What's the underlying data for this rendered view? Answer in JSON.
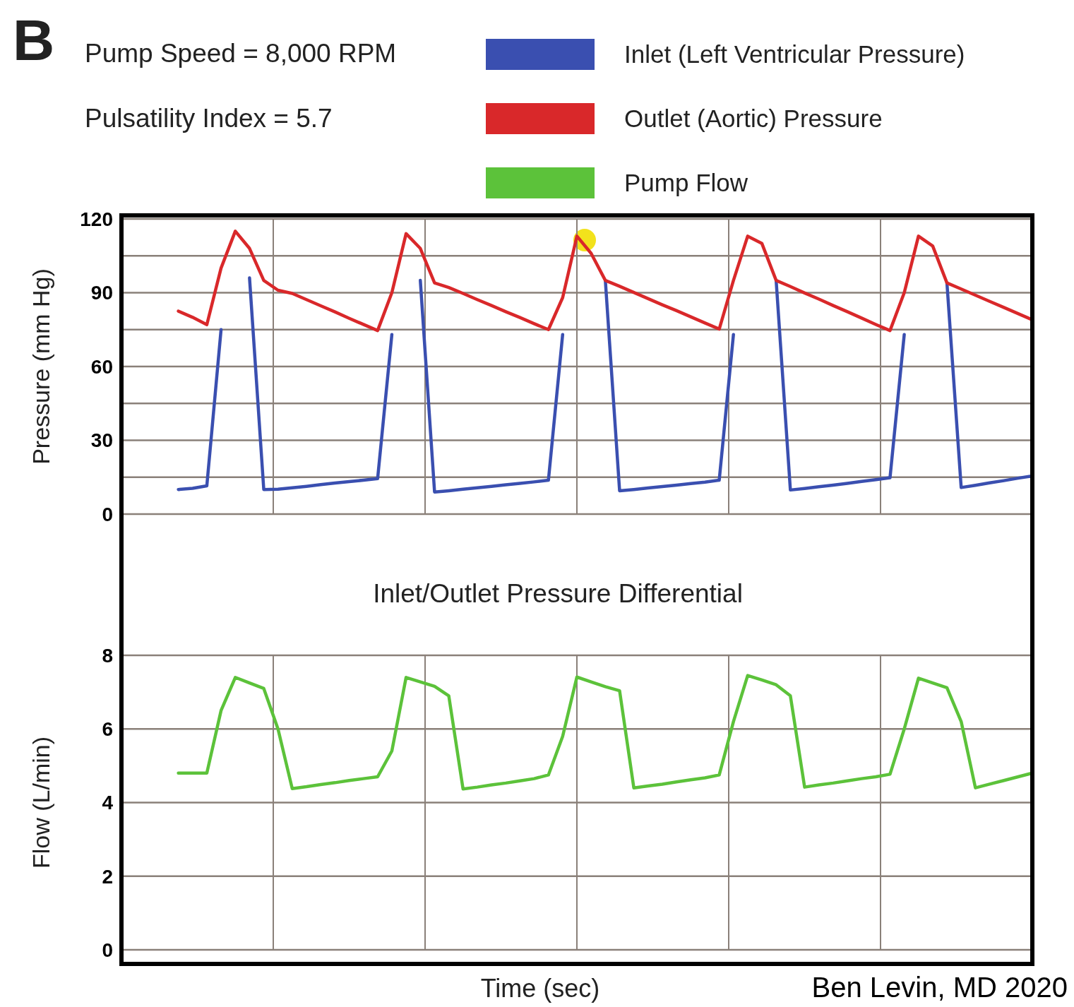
{
  "chart_data": [
    {
      "type": "line",
      "ylabel": "Pressure (mm Hg)",
      "legend": "top",
      "grid": true,
      "tick_labels": "y",
      "annotations": [
        "B",
        "Pump Speed = 8,000 RPM",
        "Pulsatility Index = 5.7"
      ],
      "categories": [
        null,
        null,
        null,
        null,
        null,
        null,
        null,
        null,
        null,
        null,
        null,
        null,
        null,
        null,
        null,
        null,
        null,
        null,
        null,
        null,
        null,
        null,
        null,
        null,
        null,
        null,
        null,
        null,
        null,
        null,
        null,
        null,
        null,
        null,
        null,
        null,
        null,
        null,
        null,
        null,
        null,
        null,
        null,
        null,
        null,
        null,
        null,
        null,
        null,
        null,
        null,
        null,
        null,
        null,
        null,
        null,
        null,
        null,
        null,
        null,
        null
      ],
      "ylim": [
        0,
        120
      ],
      "yticks": [
        0,
        {
          "value": 15,
          "label": null
        },
        30,
        {
          "value": 45,
          "label": null
        },
        60,
        {
          "value": 75,
          "label": null
        },
        90,
        {
          "value": 105,
          "label": null
        },
        120
      ],
      "series": [
        {
          "name": "Inlet (Left Ventricular Pressure)",
          "color": "#3a4fb0",
          "values": [
            10,
            10.5,
            11.5,
            75,
            null,
            96,
            10,
            10.1,
            10.7,
            11.3,
            12,
            12.6,
            13.2,
            13.8,
            14.4,
            73,
            null,
            95,
            9,
            9.5,
            10.1,
            10.7,
            11.3,
            11.9,
            12.5,
            13.1,
            13.8,
            73,
            null,
            null,
            95,
            9.5,
            10,
            10.6,
            11.2,
            11.8,
            12.4,
            13,
            13.8,
            73,
            null,
            null,
            95,
            9.8,
            10.4,
            11.1,
            11.8,
            12.5,
            13.3,
            14,
            14.8,
            73,
            null,
            null,
            94,
            10.8,
            11.7,
            12.7,
            13.6,
            14.6,
            15.5
          ]
        },
        {
          "name": "Outlet (Aortic) Pressure",
          "color": "#d9282a",
          "values": [
            82.5,
            80,
            77,
            100,
            115,
            108,
            95,
            91,
            89.7,
            87.2,
            84.7,
            82.2,
            79.6,
            77.1,
            74.6,
            90,
            114,
            108,
            94,
            92.1,
            89.7,
            87.2,
            84.8,
            82.3,
            79.9,
            77.4,
            75,
            88,
            113,
            106,
            95,
            92.6,
            90.1,
            87.6,
            85.1,
            82.7,
            80.2,
            77.7,
            75.2,
            95,
            113,
            110,
            95,
            92.5,
            89.9,
            87.4,
            84.8,
            82.3,
            79.7,
            77.1,
            74.6,
            90,
            113,
            109,
            94,
            91.5,
            89,
            86.5,
            84,
            81.5,
            79
          ]
        }
      ]
    },
    {
      "type": "line",
      "title": "Inlet/Outlet Pressure Differential",
      "xlabel": "Time (sec)",
      "ylabel": "Flow (L/min)",
      "legend": "top",
      "grid": true,
      "tick_labels": "y",
      "annotations": [
        "Ben Levin, MD 2020"
      ],
      "categories": [
        null,
        null,
        null,
        null,
        null,
        null,
        null,
        null,
        null,
        null,
        null,
        null,
        null,
        null,
        null,
        null,
        null,
        null,
        null,
        null,
        null,
        null,
        null,
        null,
        null,
        null,
        null,
        null,
        null,
        null,
        null,
        null,
        null,
        null,
        null,
        null,
        null,
        null,
        null,
        null,
        null,
        null,
        null,
        null,
        null,
        null,
        null,
        null,
        null,
        null,
        null,
        null,
        null,
        null,
        null,
        null,
        null,
        null,
        null,
        null,
        null
      ],
      "ylim": [
        0,
        8
      ],
      "yticks": [
        0,
        2,
        4,
        6,
        8
      ],
      "series": [
        {
          "name": "Pump Flow",
          "color": "#5cc23a",
          "values": [
            4.8,
            4.8,
            4.8,
            6.5,
            7.4,
            7.25,
            7.1,
            6,
            4.38,
            4.43,
            4.49,
            4.54,
            4.6,
            4.65,
            4.7,
            5.4,
            7.4,
            7.28,
            7.16,
            6.9,
            4.37,
            4.42,
            4.48,
            4.53,
            4.59,
            4.65,
            4.75,
            5.8,
            7.41,
            7.28,
            7.15,
            7.04,
            4.4,
            4.45,
            4.5,
            4.56,
            4.62,
            4.67,
            4.75,
            6.2,
            7.45,
            7.33,
            7.2,
            6.9,
            4.42,
            4.48,
            4.53,
            4.59,
            4.65,
            4.7,
            4.77,
            6,
            7.38,
            7.25,
            7.12,
            6.2,
            4.4,
            4.5,
            4.6,
            4.7,
            4.8
          ]
        }
      ]
    }
  ]
}
